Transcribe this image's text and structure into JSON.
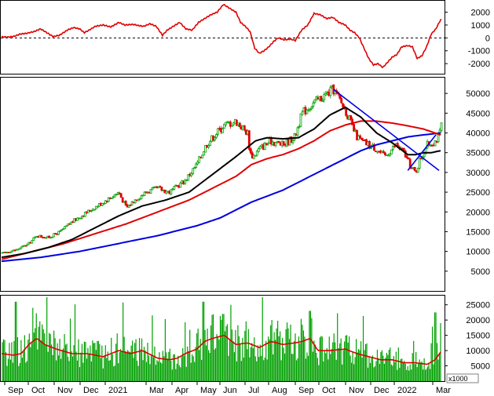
{
  "chart_data": [
    {
      "panel": "oscillator",
      "type": "line",
      "color": "#e00000",
      "zero_line": "dashed",
      "ylim": [
        -2600,
        2700
      ],
      "y_ticks": [
        "2000",
        "1000",
        "0",
        "-1000",
        "-2000"
      ],
      "y_tick_values": [
        2000,
        1000,
        0,
        -1000,
        -2000
      ],
      "t": [
        0,
        8,
        16,
        24,
        32,
        42,
        50,
        58,
        66,
        74,
        84,
        92,
        100,
        106,
        112,
        120,
        130,
        140,
        150,
        158,
        168,
        176,
        182,
        190,
        198,
        206,
        212,
        220,
        228,
        236,
        244,
        252,
        260,
        268,
        276,
        284,
        292,
        300,
        306,
        312,
        318,
        324,
        330,
        336,
        342,
        348,
        354,
        362,
        370,
        376,
        384,
        392,
        400,
        408,
        416,
        424,
        432,
        440,
        446,
        452,
        458,
        464,
        470,
        476,
        482,
        488,
        494,
        500,
        506,
        512,
        520,
        526,
        532,
        538,
        544,
        550,
        556,
        562
      ],
      "values": [
        80,
        60,
        120,
        300,
        350,
        500,
        700,
        400,
        100,
        200,
        600,
        800,
        700,
        400,
        600,
        900,
        1000,
        850,
        1200,
        1000,
        1050,
        950,
        900,
        1100,
        900,
        200,
        600,
        900,
        1200,
        700,
        600,
        1200,
        1500,
        1800,
        2000,
        2600,
        2300,
        2000,
        1200,
        900,
        500,
        -800,
        -1200,
        -1000,
        -700,
        -300,
        0,
        -150,
        -100,
        -200,
        600,
        1000,
        1900,
        1800,
        1500,
        1600,
        1200,
        1000,
        600,
        400,
        0,
        -800,
        -1600,
        -2100,
        -2000,
        -2300,
        -1900,
        -1500,
        -1300,
        -700,
        -600,
        -700,
        -1600,
        -1400,
        -700,
        300,
        700,
        1400
      ]
    },
    {
      "panel": "price",
      "type": "candlestick",
      "ylim": [
        0,
        54000
      ],
      "y_ticks": [
        "50000",
        "45000",
        "40000",
        "35000",
        "30000",
        "25000",
        "20000",
        "15000",
        "10000",
        "5000"
      ],
      "y_tick_values": [
        50000,
        45000,
        40000,
        35000,
        30000,
        25000,
        20000,
        15000,
        10000,
        5000
      ],
      "up_color": "#00a000",
      "down_color": "#e00000",
      "close_anchors": {
        "t": [
          0,
          20,
          35,
          45,
          60,
          75,
          90,
          110,
          130,
          150,
          160,
          170,
          185,
          200,
          215,
          235,
          250,
          262,
          275,
          285,
          300,
          315,
          318,
          322,
          330,
          345,
          360,
          375,
          385,
          395,
          410,
          425,
          440,
          450,
          455,
          460,
          470,
          480,
          490,
          505,
          515,
          525,
          530,
          535,
          545,
          555,
          560,
          563
        ],
        "close": [
          9500,
          10500,
          12000,
          14000,
          13500,
          15000,
          17500,
          20000,
          22500,
          25000,
          21000,
          23000,
          25000,
          26000,
          25000,
          28000,
          32000,
          37000,
          40000,
          42000,
          43000,
          40000,
          35000,
          34000,
          36000,
          38000,
          37000,
          39000,
          45000,
          47000,
          49000,
          51000,
          46000,
          41000,
          39000,
          38000,
          37000,
          36000,
          34000,
          37000,
          35000,
          31000,
          30000,
          33000,
          37000,
          38000,
          39000,
          42000
        ]
      },
      "ma_short": {
        "color": "#000000",
        "t": [
          0,
          30,
          60,
          90,
          120,
          150,
          180,
          210,
          240,
          270,
          300,
          325,
          340,
          360,
          380,
          400,
          420,
          440,
          460,
          480,
          500,
          510,
          520,
          530,
          540,
          550,
          562
        ],
        "values": [
          8500,
          9500,
          11000,
          13000,
          16000,
          19000,
          21500,
          23000,
          25000,
          29500,
          34000,
          38000,
          38800,
          38500,
          38800,
          41000,
          44500,
          46500,
          44000,
          40000,
          37500,
          36000,
          34500,
          34500,
          35000,
          35000,
          35500
        ]
      },
      "ma_medium": {
        "color": "#e00000",
        "t": [
          0,
          40,
          80,
          120,
          160,
          200,
          240,
          270,
          300,
          320,
          340,
          360,
          380,
          400,
          420,
          440,
          460,
          480,
          500,
          520,
          540,
          562
        ],
        "values": [
          8000,
          10000,
          12000,
          14500,
          17000,
          20000,
          23000,
          26000,
          29000,
          32000,
          33500,
          34500,
          36000,
          38000,
          40500,
          42000,
          43000,
          43000,
          42500,
          41800,
          41000,
          39500
        ]
      },
      "ma_long": {
        "color": "#0000e0",
        "t": [
          0,
          50,
          100,
          150,
          200,
          250,
          280,
          300,
          320,
          340,
          360,
          380,
          400,
          420,
          440,
          460,
          480,
          500,
          520,
          540,
          562
        ],
        "values": [
          7500,
          8500,
          10000,
          12000,
          14000,
          16500,
          18500,
          20500,
          22500,
          24000,
          25500,
          27500,
          29500,
          31500,
          33500,
          35500,
          37000,
          38000,
          39000,
          39500,
          40000
        ]
      },
      "trendlines": [
        {
          "color": "#0000e0",
          "t": [
            425,
            560
          ],
          "values": [
            51000,
            30500
          ]
        },
        {
          "color": "#0000e0",
          "t": [
            520,
            556
          ],
          "values": [
            30500,
            39500
          ]
        }
      ]
    },
    {
      "panel": "volume",
      "type": "bar",
      "color": "#00a000",
      "ma_color": "#e00000",
      "scale_note": "x1000",
      "ylim": [
        0,
        28000
      ],
      "y_ticks": [
        "25000",
        "20000",
        "15000",
        "10000",
        "5000"
      ],
      "y_tick_values": [
        25000,
        20000,
        15000,
        10000,
        5000
      ],
      "ma": {
        "t": [
          0,
          15,
          25,
          35,
          45,
          55,
          70,
          90,
          110,
          130,
          150,
          165,
          180,
          200,
          215,
          225,
          235,
          250,
          260,
          270,
          285,
          300,
          315,
          330,
          345,
          360,
          375,
          385,
          395,
          405,
          420,
          440,
          455,
          470,
          485,
          500,
          515,
          530,
          545,
          555,
          562
        ],
        "values": [
          9000,
          8500,
          9000,
          12000,
          14000,
          12000,
          10500,
          9000,
          9000,
          8000,
          10000,
          9000,
          10000,
          7500,
          7000,
          7500,
          9000,
          10500,
          13000,
          14000,
          15000,
          12000,
          12500,
          11000,
          13000,
          12000,
          12500,
          13000,
          14000,
          10000,
          10000,
          10500,
          9000,
          8000,
          7000,
          7000,
          6000,
          6000,
          5500,
          7000,
          9500
        ]
      },
      "bar_peaks": [
        {
          "t": 18,
          "value": 26000
        },
        {
          "t": 40,
          "value": 24000
        },
        {
          "t": 258,
          "value": 26000
        },
        {
          "t": 284,
          "value": 22000
        },
        {
          "t": 395,
          "value": 23000
        },
        {
          "t": 555,
          "value": 22500
        }
      ],
      "bar_base": 9000
    }
  ],
  "x_axis": {
    "labels": [
      "Sep",
      "Oct",
      "Nov",
      "Dec",
      "2021",
      "Mar",
      "Apr",
      "May",
      "Jun",
      "Jul",
      "Aug",
      "Sep",
      "Oct",
      "Nov",
      "Dec",
      "2022",
      "Mar"
    ]
  },
  "volume_unit_label": "x1000"
}
